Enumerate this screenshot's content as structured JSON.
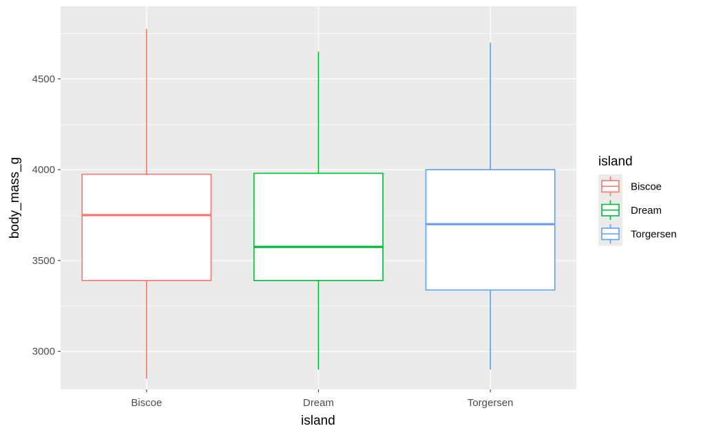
{
  "chart_data": {
    "type": "boxplot",
    "xlabel": "island",
    "ylabel": "body_mass_g",
    "categories": [
      "Biscoe",
      "Dream",
      "Torgersen"
    ],
    "ylim": [
      2790,
      4900
    ],
    "y_ticks": [
      3000,
      3500,
      4000,
      4500
    ],
    "y_tick_labels": [
      "3000",
      "3500",
      "4000",
      "4500"
    ],
    "grid": true,
    "legend": {
      "title": "island",
      "placement": "right",
      "entries": [
        "Biscoe",
        "Dream",
        "Torgersen"
      ]
    },
    "series": [
      {
        "name": "Biscoe",
        "color": "#F8766D",
        "min": 2850,
        "q1": 3390,
        "median": 3750,
        "q3": 3975,
        "max": 4775
      },
      {
        "name": "Dream",
        "color": "#00BA38",
        "min": 2900,
        "q1": 3390,
        "median": 3575,
        "q3": 3980,
        "max": 4650
      },
      {
        "name": "Torgersen",
        "color": "#619CFF",
        "min": 2900,
        "q1": 3338,
        "median": 3700,
        "q3": 4000,
        "max": 4700
      }
    ],
    "panel_background": "#EBEBEB",
    "grid_color": "#FFFFFF"
  }
}
